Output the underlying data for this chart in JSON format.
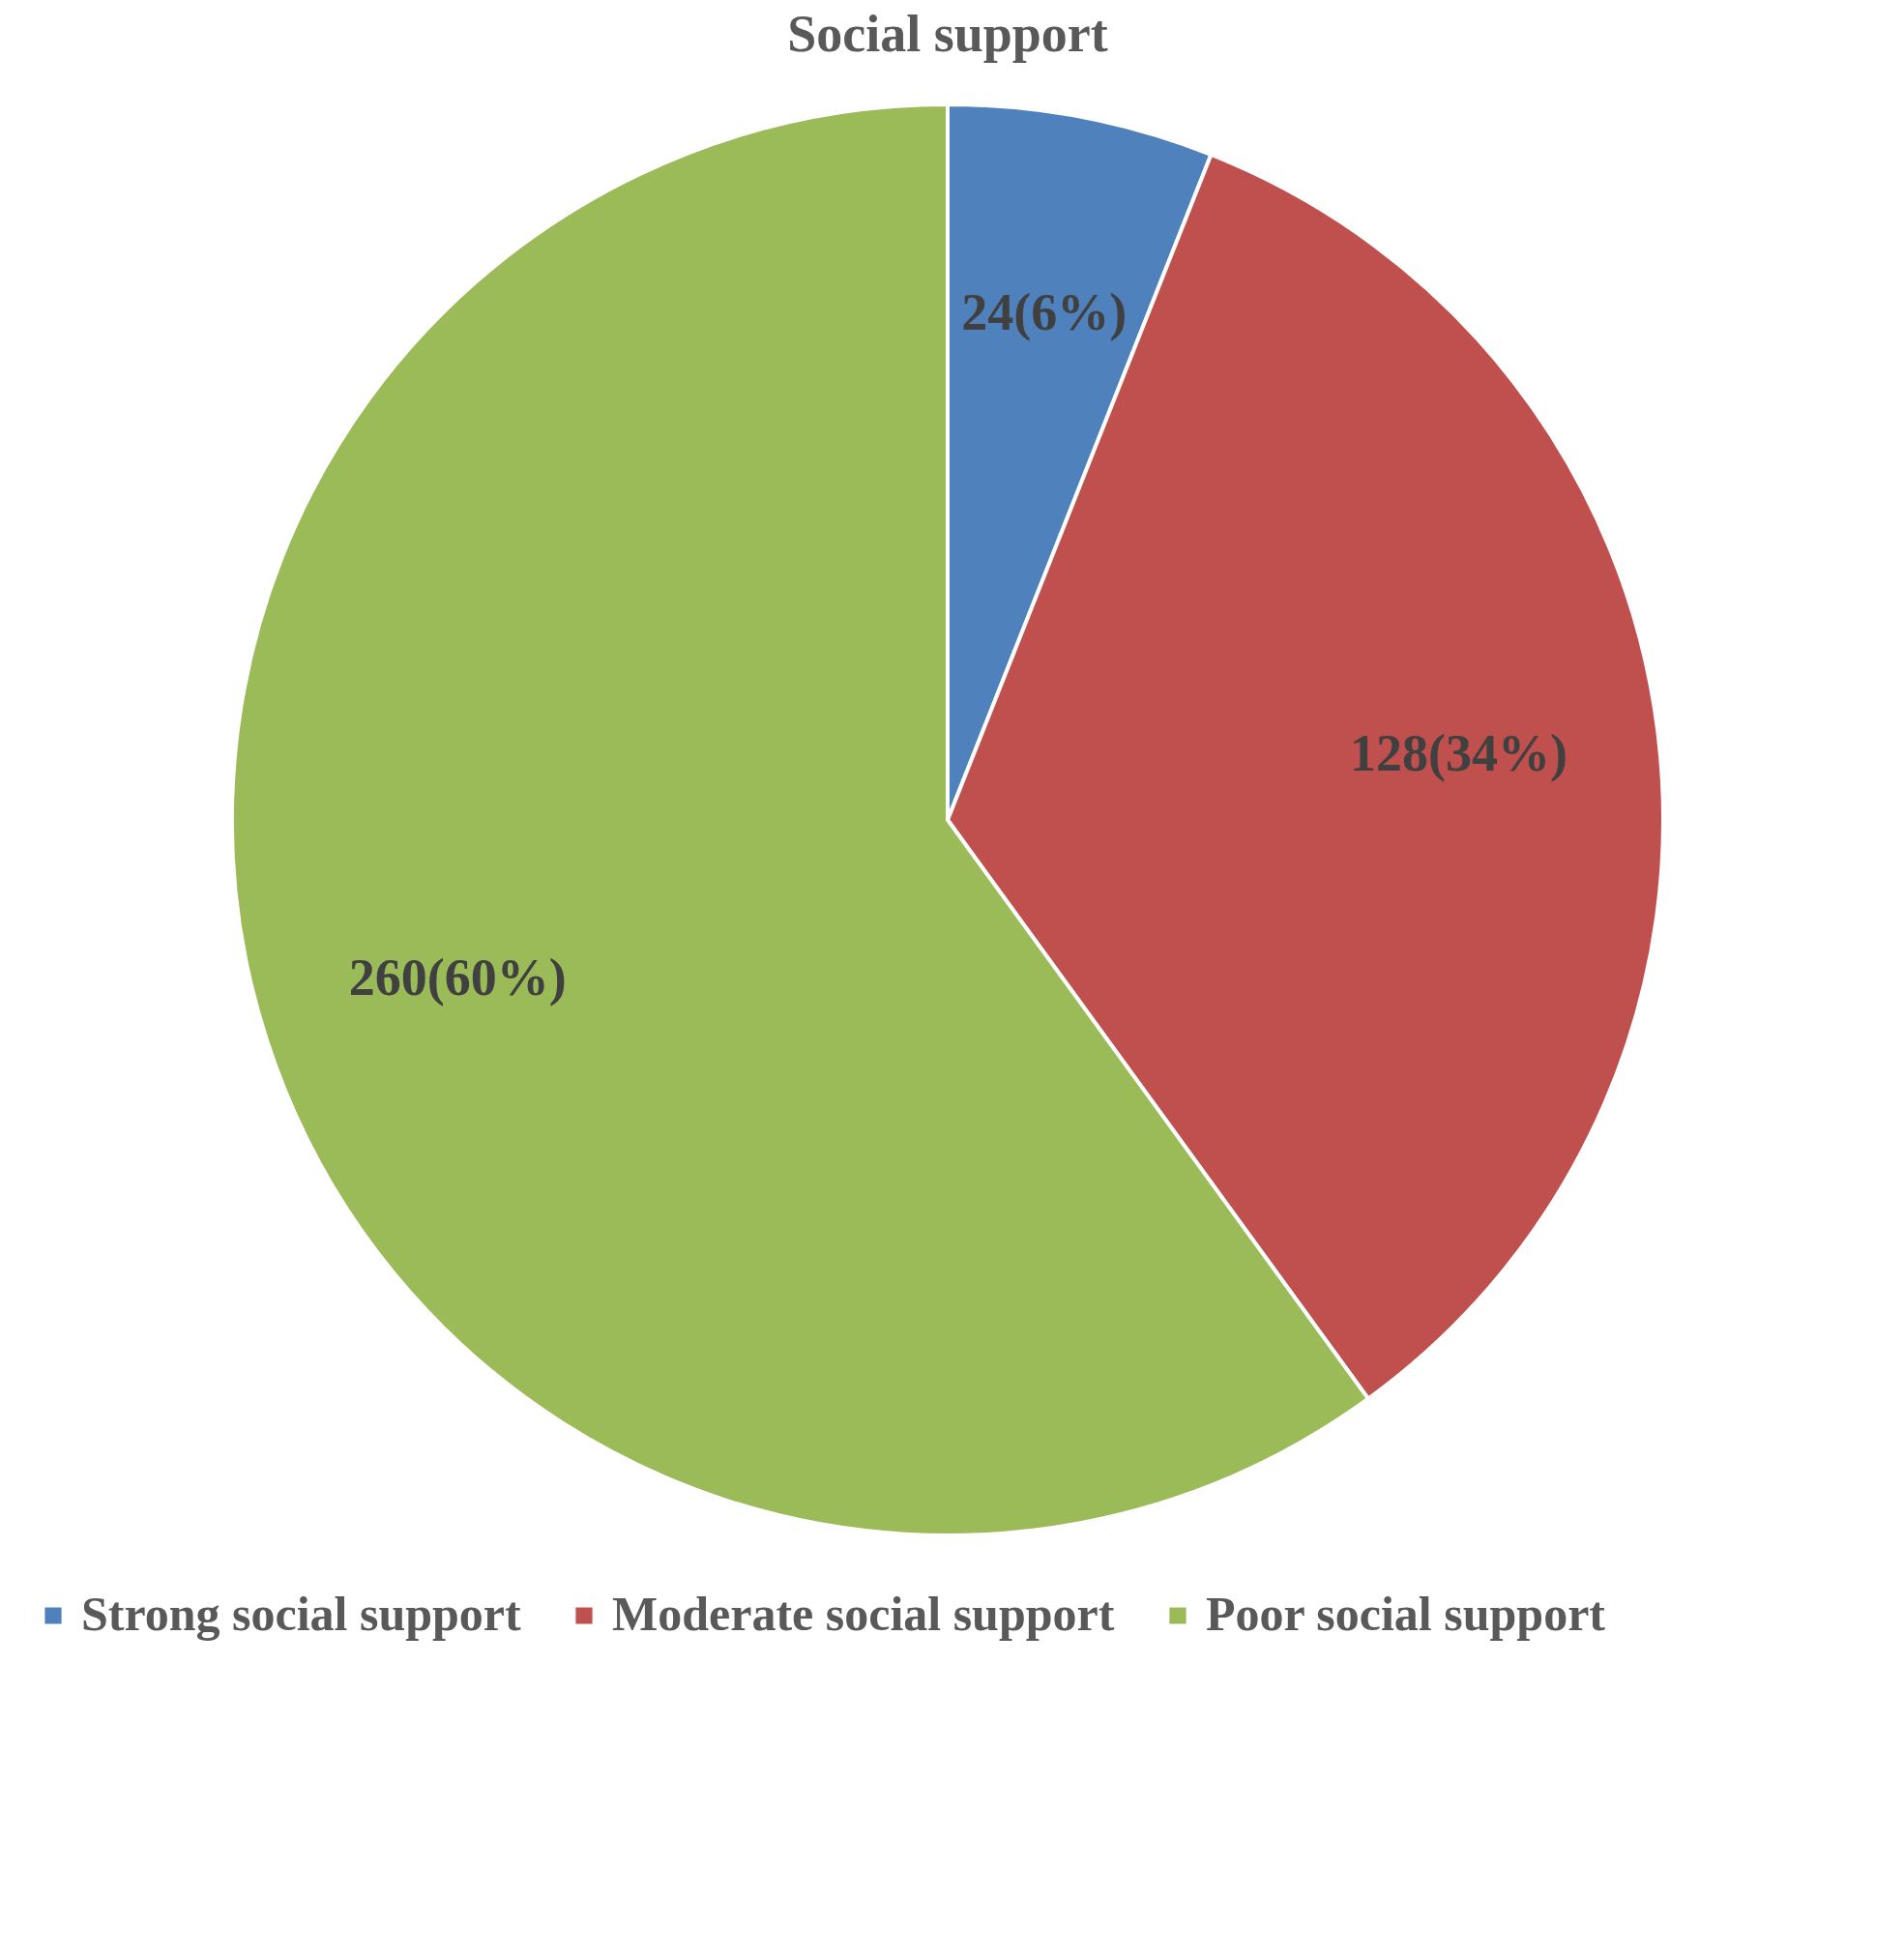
{
  "chart_data": {
    "type": "pie",
    "title": "Social support",
    "categories": [
      "Strong social support",
      "Moderate social support",
      "Poor social support"
    ],
    "values": [
      6,
      34,
      60
    ],
    "value_labels": [
      "24(6%)",
      "128(34%)",
      "260(60%)"
    ],
    "colors": [
      "#4f81bd",
      "#c0504d",
      "#9bbb59"
    ],
    "legend": "bottom"
  }
}
